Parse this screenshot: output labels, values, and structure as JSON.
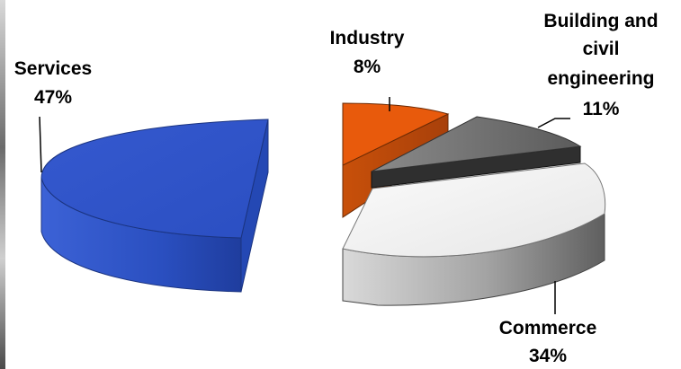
{
  "chart_data": {
    "type": "pie",
    "title": "",
    "slices": [
      {
        "label": "Services",
        "value": 47,
        "value_label": "47%",
        "color": "#2e54c8"
      },
      {
        "label": "Industry",
        "value": 8,
        "value_label": "8%",
        "color": "#e85a0c"
      },
      {
        "label": "Building and civil engineering",
        "label_lines": [
          "Building and",
          "civil",
          "engineering"
        ],
        "value": 11,
        "value_label": "11%",
        "color": "#6e6e6e"
      },
      {
        "label": "Commerce",
        "value": 34,
        "value_label": "34%",
        "color": "#f0f0f0"
      }
    ],
    "exploded": true,
    "three_d": true,
    "legend": "none",
    "data_labels": "outside with leader lines"
  }
}
